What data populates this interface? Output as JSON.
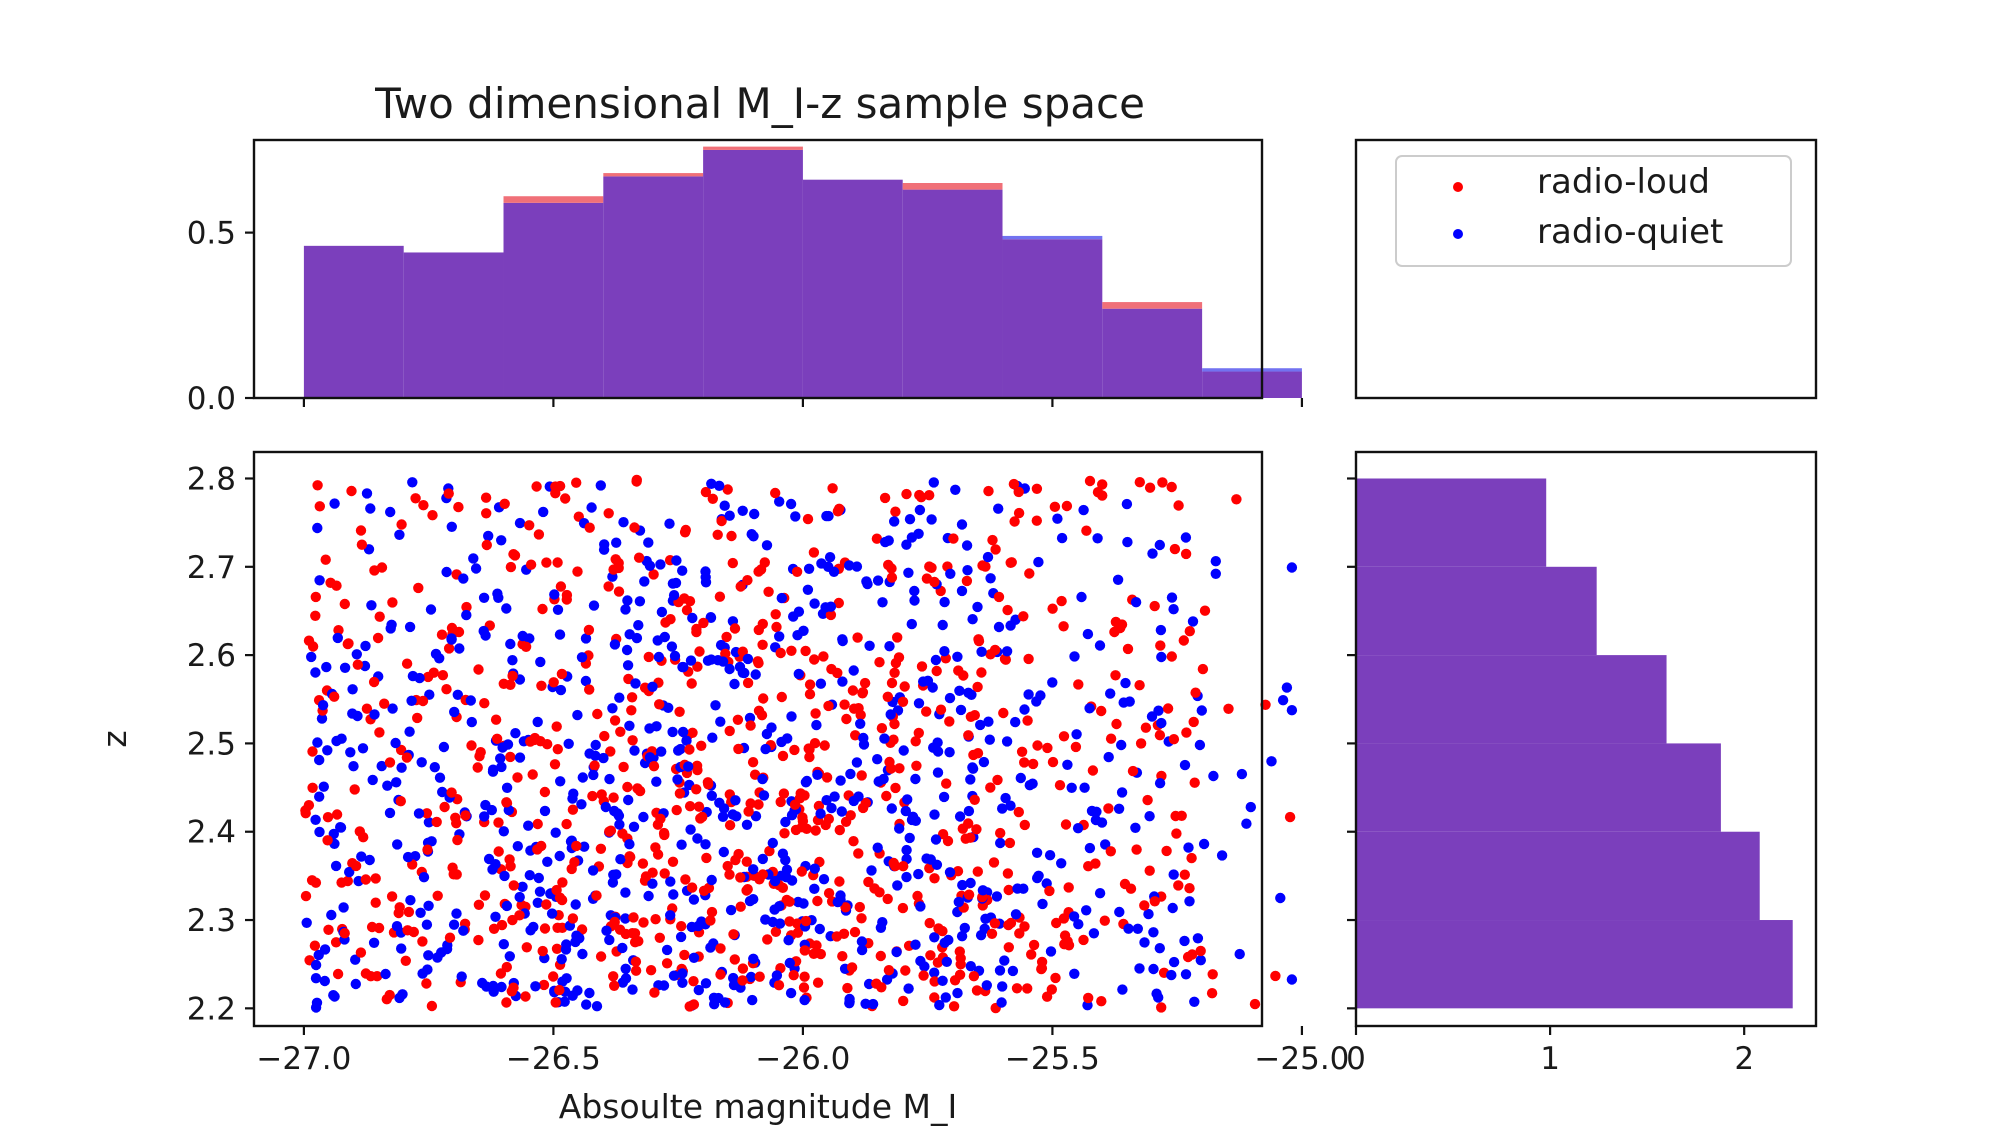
{
  "colors": {
    "radio_loud": "#ff0000",
    "radio_quiet": "#0000ff",
    "overlap": "#7b3fbc",
    "background": "#ffffff"
  },
  "chart_data": [
    {
      "panel": "top-histogram",
      "type": "bar",
      "title": "Two dimensional M_I-z sample space",
      "bin_edges": [
        -27.0,
        -26.8,
        -26.6,
        -26.4,
        -26.2,
        -26.0,
        -25.8,
        -25.6,
        -25.4,
        -25.2,
        -25.0
      ],
      "series": [
        {
          "name": "radio-loud",
          "values": [
            0.46,
            0.44,
            0.61,
            0.68,
            0.76,
            0.66,
            0.65,
            0.48,
            0.29,
            0.08
          ]
        },
        {
          "name": "radio-quiet",
          "values": [
            0.46,
            0.44,
            0.59,
            0.67,
            0.75,
            0.66,
            0.63,
            0.49,
            0.27,
            0.09
          ]
        }
      ],
      "ylim": [
        0,
        0.78
      ],
      "xlim": [
        -27.1,
        -25.08
      ],
      "yticks": [
        "0.0",
        "0.5"
      ],
      "ytick_values": [
        0,
        0.5
      ],
      "xticks_values": [
        -27.0,
        -26.5,
        -26.0,
        -25.5,
        -25.0
      ]
    },
    {
      "panel": "scatter",
      "type": "scatter",
      "xlabel": "Absoulte magnitude M_I",
      "ylabel": "z",
      "xlim": [
        -27.1,
        -25.08
      ],
      "ylim": [
        2.18,
        2.83
      ],
      "xticks": [
        "−27.0",
        "−26.5",
        "−26.0",
        "−25.5",
        "−25.0"
      ],
      "xtick_values": [
        -27.0,
        -26.5,
        -26.0,
        -25.5,
        -25.0
      ],
      "yticks": [
        "2.2",
        "2.3",
        "2.4",
        "2.5",
        "2.6",
        "2.7",
        "2.8"
      ],
      "ytick_values": [
        2.2,
        2.3,
        2.4,
        2.5,
        2.6,
        2.7,
        2.8
      ],
      "series": [
        {
          "name": "radio-loud",
          "points_per_series": 850,
          "x_range": [
            -27.0,
            -25.02
          ],
          "y_range": [
            2.2,
            2.8
          ]
        },
        {
          "name": "radio-quiet",
          "points_per_series": 850,
          "x_range": [
            -27.0,
            -25.02
          ],
          "y_range": [
            2.2,
            2.8
          ]
        }
      ]
    },
    {
      "panel": "right-histogram",
      "type": "bar",
      "orientation": "horizontal",
      "bin_edges": [
        2.2,
        2.3,
        2.4,
        2.5,
        2.6,
        2.7,
        2.8
      ],
      "series": [
        {
          "name": "radio-loud",
          "values": [
            2.25,
            2.08,
            1.88,
            1.6,
            1.24,
            0.98
          ]
        },
        {
          "name": "radio-quiet",
          "values": [
            2.25,
            2.08,
            1.88,
            1.6,
            1.24,
            0.98
          ]
        }
      ],
      "xlim": [
        0,
        2.37
      ],
      "xticks": [
        "0",
        "1",
        "2"
      ],
      "xtick_values": [
        0,
        1,
        2
      ]
    }
  ],
  "legend": {
    "entries": [
      {
        "label": "radio-loud",
        "color": "#ff0000"
      },
      {
        "label": "radio-quiet",
        "color": "#0000ff"
      }
    ]
  }
}
